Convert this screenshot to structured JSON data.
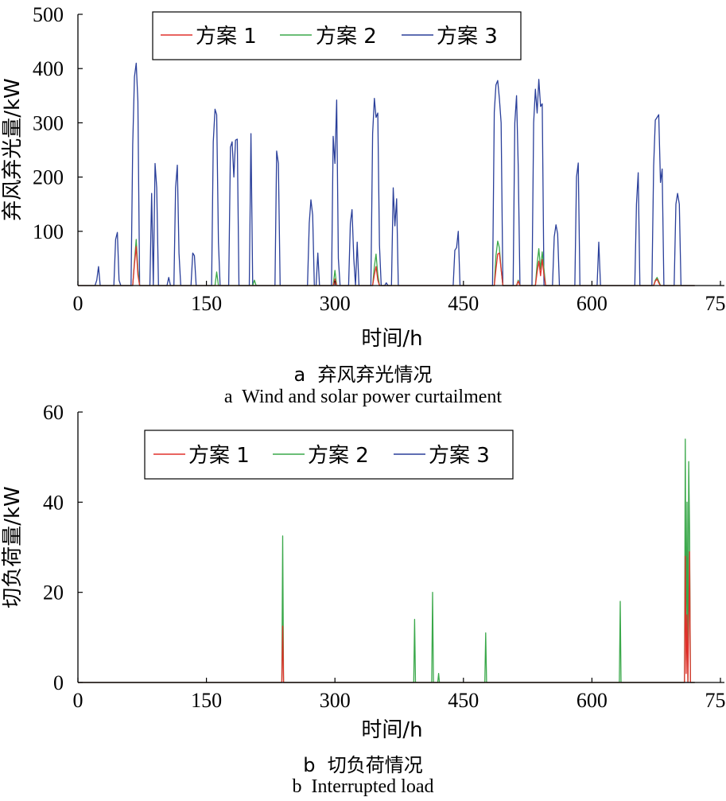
{
  "captions": {
    "a_cn": "a  弃风弃光情况",
    "a_en": "a  Wind and solar power curtailment",
    "b_cn": "b  切负荷情况",
    "b_en": "b  Interrupted load"
  },
  "colors": {
    "series_1": "#e0312b",
    "series_2": "#3aa84a",
    "series_3": "#2a3f9a",
    "axis": "#000000"
  },
  "chart_data": [
    {
      "type": "line",
      "xlabel": "时间/h",
      "ylabel": "弃风弃光量/kW",
      "xlim": [
        0,
        750
      ],
      "ylim": [
        0,
        500
      ],
      "xticks": [
        0,
        150,
        300,
        450,
        600,
        750
      ],
      "yticks": [
        100,
        200,
        300,
        400,
        500
      ],
      "legend_position": "top",
      "series": [
        {
          "name": "方案  1",
          "points": [
            [
              0,
              0
            ],
            [
              64,
              0
            ],
            [
              66,
              40
            ],
            [
              68,
              72
            ],
            [
              70,
              20
            ],
            [
              72,
              0
            ],
            [
              298,
              0
            ],
            [
              300,
              12
            ],
            [
              302,
              0
            ],
            [
              344,
              0
            ],
            [
              346,
              20
            ],
            [
              348,
              35
            ],
            [
              350,
              10
            ],
            [
              352,
              0
            ],
            [
              486,
              0
            ],
            [
              488,
              30
            ],
            [
              490,
              58
            ],
            [
              492,
              60
            ],
            [
              494,
              30
            ],
            [
              496,
              0
            ],
            [
              512,
              0
            ],
            [
              514,
              8
            ],
            [
              516,
              0
            ],
            [
              534,
              0
            ],
            [
              536,
              25
            ],
            [
              538,
              45
            ],
            [
              540,
              18
            ],
            [
              542,
              48
            ],
            [
              544,
              20
            ],
            [
              546,
              0
            ],
            [
              672,
              0
            ],
            [
              674,
              8
            ],
            [
              676,
              12
            ],
            [
              678,
              5
            ],
            [
              680,
              0
            ],
            [
              720,
              0
            ]
          ]
        },
        {
          "name": "方案  2",
          "points": [
            [
              0,
              0
            ],
            [
              64,
              0
            ],
            [
              66,
              45
            ],
            [
              68,
              85
            ],
            [
              70,
              30
            ],
            [
              72,
              0
            ],
            [
              160,
              0
            ],
            [
              162,
              25
            ],
            [
              164,
              0
            ],
            [
              204,
              0
            ],
            [
              206,
              10
            ],
            [
              208,
              0
            ],
            [
              298,
              0
            ],
            [
              300,
              28
            ],
            [
              302,
              0
            ],
            [
              344,
              0
            ],
            [
              346,
              35
            ],
            [
              348,
              58
            ],
            [
              350,
              20
            ],
            [
              352,
              0
            ],
            [
              486,
              0
            ],
            [
              488,
              55
            ],
            [
              490,
              82
            ],
            [
              492,
              70
            ],
            [
              494,
              30
            ],
            [
              496,
              0
            ],
            [
              512,
              0
            ],
            [
              514,
              10
            ],
            [
              516,
              0
            ],
            [
              534,
              0
            ],
            [
              536,
              40
            ],
            [
              538,
              68
            ],
            [
              540,
              30
            ],
            [
              542,
              62
            ],
            [
              544,
              30
            ],
            [
              546,
              0
            ],
            [
              672,
              0
            ],
            [
              674,
              10
            ],
            [
              676,
              15
            ],
            [
              678,
              8
            ],
            [
              680,
              0
            ],
            [
              720,
              0
            ]
          ]
        },
        {
          "name": "方案  3",
          "points": [
            [
              0,
              0
            ],
            [
              20,
              0
            ],
            [
              22,
              10
            ],
            [
              24,
              35
            ],
            [
              26,
              0
            ],
            [
              42,
              0
            ],
            [
              44,
              85
            ],
            [
              46,
              98
            ],
            [
              48,
              10
            ],
            [
              50,
              0
            ],
            [
              62,
              0
            ],
            [
              64,
              260
            ],
            [
              66,
              385
            ],
            [
              68,
              410
            ],
            [
              70,
              340
            ],
            [
              72,
              0
            ],
            [
              78,
              0
            ],
            [
              80,
              0
            ],
            [
              84,
              0
            ],
            [
              86,
              170
            ],
            [
              88,
              0
            ],
            [
              90,
              225
            ],
            [
              92,
              180
            ],
            [
              94,
              0
            ],
            [
              104,
              0
            ],
            [
              106,
              15
            ],
            [
              108,
              0
            ],
            [
              112,
              0
            ],
            [
              114,
              180
            ],
            [
              116,
              222
            ],
            [
              118,
              60
            ],
            [
              120,
              0
            ],
            [
              132,
              0
            ],
            [
              134,
              60
            ],
            [
              136,
              55
            ],
            [
              138,
              0
            ],
            [
              156,
              0
            ],
            [
              158,
              265
            ],
            [
              160,
              325
            ],
            [
              162,
              315
            ],
            [
              164,
              80
            ],
            [
              166,
              0
            ],
            [
              176,
              0
            ],
            [
              178,
              255
            ],
            [
              180,
              265
            ],
            [
              182,
              200
            ],
            [
              184,
              268
            ],
            [
              186,
              270
            ],
            [
              188,
              0
            ],
            [
              200,
              0
            ],
            [
              202,
              280
            ],
            [
              204,
              0
            ],
            [
              222,
              0
            ],
            [
              224,
              0
            ],
            [
              230,
              0
            ],
            [
              232,
              248
            ],
            [
              234,
              225
            ],
            [
              236,
              0
            ],
            [
              268,
              0
            ],
            [
              270,
              115
            ],
            [
              272,
              158
            ],
            [
              274,
              130
            ],
            [
              276,
              0
            ],
            [
              278,
              0
            ],
            [
              280,
              60
            ],
            [
              282,
              0
            ],
            [
              296,
              0
            ],
            [
              298,
              275
            ],
            [
              300,
              225
            ],
            [
              302,
              342
            ],
            [
              304,
              50
            ],
            [
              306,
              0
            ],
            [
              316,
              0
            ],
            [
              318,
              115
            ],
            [
              320,
              140
            ],
            [
              322,
              50
            ],
            [
              324,
              0
            ],
            [
              326,
              80
            ],
            [
              328,
              0
            ],
            [
              330,
              0
            ],
            [
              332,
              0
            ],
            [
              342,
              0
            ],
            [
              344,
              280
            ],
            [
              346,
              345
            ],
            [
              348,
              310
            ],
            [
              350,
              318
            ],
            [
              352,
              75
            ],
            [
              354,
              0
            ],
            [
              358,
              0
            ],
            [
              360,
              5
            ],
            [
              362,
              0
            ],
            [
              366,
              0
            ],
            [
              368,
              180
            ],
            [
              370,
              110
            ],
            [
              372,
              160
            ],
            [
              374,
              0
            ],
            [
              438,
              0
            ],
            [
              440,
              65
            ],
            [
              442,
              70
            ],
            [
              444,
              100
            ],
            [
              446,
              0
            ],
            [
              484,
              0
            ],
            [
              486,
              320
            ],
            [
              488,
              370
            ],
            [
              490,
              378
            ],
            [
              492,
              345
            ],
            [
              494,
              300
            ],
            [
              496,
              0
            ],
            [
              508,
              0
            ],
            [
              510,
              300
            ],
            [
              512,
              350
            ],
            [
              514,
              220
            ],
            [
              516,
              0
            ],
            [
              530,
              0
            ],
            [
              532,
              300
            ],
            [
              534,
              362
            ],
            [
              536,
              318
            ],
            [
              538,
              380
            ],
            [
              540,
              330
            ],
            [
              542,
              335
            ],
            [
              544,
              0
            ],
            [
              554,
              0
            ],
            [
              556,
              90
            ],
            [
              558,
              112
            ],
            [
              560,
              95
            ],
            [
              562,
              0
            ],
            [
              580,
              0
            ],
            [
              582,
              200
            ],
            [
              584,
              226
            ],
            [
              586,
              0
            ],
            [
              606,
              0
            ],
            [
              608,
              80
            ],
            [
              610,
              0
            ],
            [
              650,
              0
            ],
            [
              652,
              150
            ],
            [
              654,
              208
            ],
            [
              656,
              0
            ],
            [
              670,
              0
            ],
            [
              672,
              220
            ],
            [
              674,
              305
            ],
            [
              676,
              310
            ],
            [
              678,
              315
            ],
            [
              680,
              190
            ],
            [
              682,
              215
            ],
            [
              684,
              0
            ],
            [
              696,
              0
            ],
            [
              698,
              150
            ],
            [
              700,
              170
            ],
            [
              702,
              150
            ],
            [
              704,
              0
            ],
            [
              720,
              0
            ]
          ]
        }
      ]
    },
    {
      "type": "line",
      "xlabel": "时间/h",
      "ylabel": "切负荷量/kW",
      "xlim": [
        0,
        750
      ],
      "ylim": [
        0,
        60
      ],
      "xticks": [
        0,
        150,
        300,
        450,
        600,
        750
      ],
      "yticks": [
        0,
        20,
        40,
        60
      ],
      "legend_position": "top",
      "series": [
        {
          "name": "方案  1",
          "points": [
            [
              0,
              0
            ],
            [
              238,
              0
            ],
            [
              239,
              12.5
            ],
            [
              240,
              0
            ],
            [
              708,
              0
            ],
            [
              709,
              28
            ],
            [
              710,
              2
            ],
            [
              711,
              15
            ],
            [
              712,
              0
            ],
            [
              713,
              12
            ],
            [
              714,
              29
            ],
            [
              715,
              0
            ],
            [
              720,
              0
            ]
          ]
        },
        {
          "name": "方案  2",
          "points": [
            [
              0,
              0
            ],
            [
              238,
              0
            ],
            [
              239,
              32.5
            ],
            [
              240,
              0
            ],
            [
              392,
              0
            ],
            [
              393,
              14
            ],
            [
              394,
              0
            ],
            [
              413,
              0
            ],
            [
              414,
              20
            ],
            [
              415,
              0
            ],
            [
              420,
              0
            ],
            [
              421,
              2
            ],
            [
              422,
              0
            ],
            [
              475,
              0
            ],
            [
              476,
              11
            ],
            [
              477,
              0
            ],
            [
              632,
              0
            ],
            [
              633,
              18
            ],
            [
              634,
              0
            ],
            [
              708,
              0
            ],
            [
              709,
              54
            ],
            [
              710,
              5
            ],
            [
              711,
              40
            ],
            [
              712,
              0
            ],
            [
              713,
              49
            ],
            [
              714,
              33
            ],
            [
              715,
              0
            ],
            [
              720,
              0
            ]
          ]
        },
        {
          "name": "方案  3",
          "points": [
            [
              0,
              0
            ],
            [
              720,
              0
            ]
          ]
        }
      ]
    }
  ]
}
